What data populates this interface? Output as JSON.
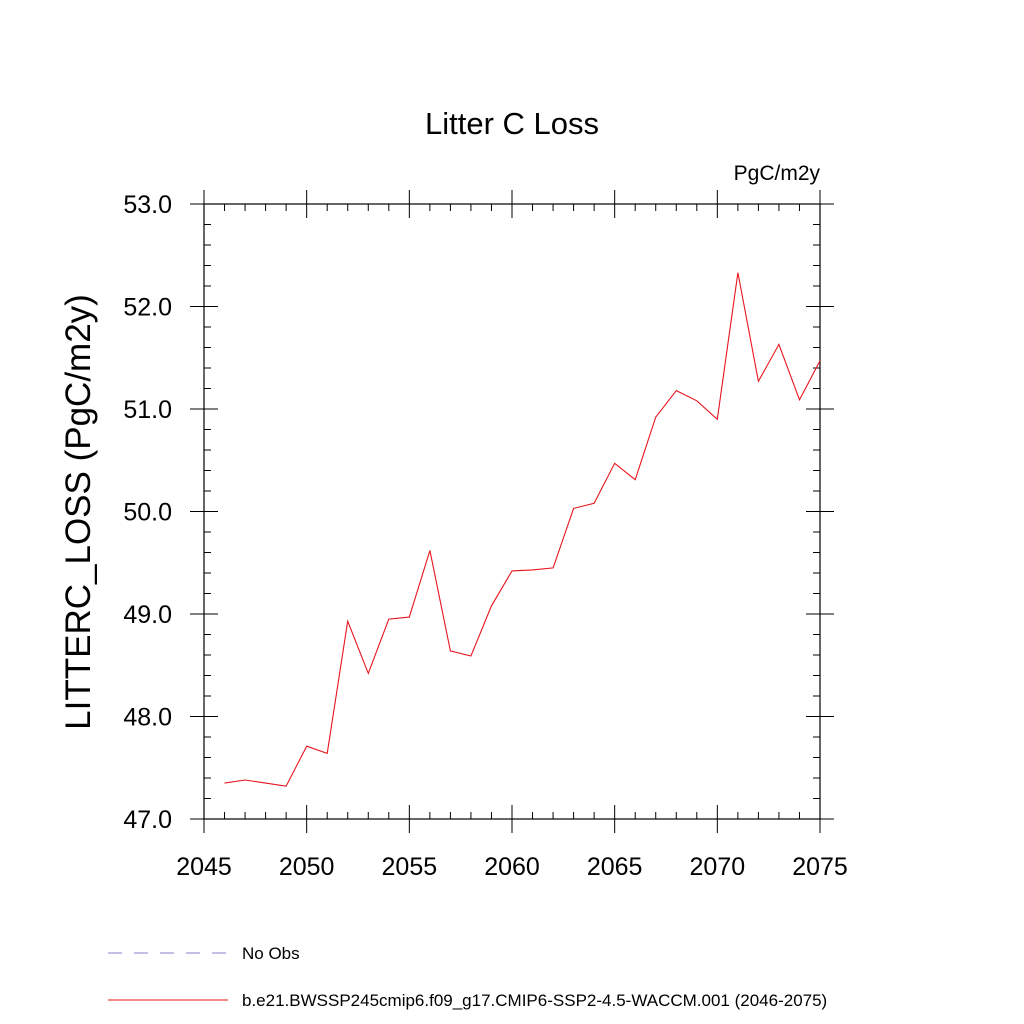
{
  "chart_data": {
    "type": "line",
    "title": "Litter C Loss",
    "units_label": "PgC/m2y",
    "ylabel": "LITTERC_LOSS  (PgC/m2y)",
    "xlabel": "",
    "xlim": [
      2045,
      2075
    ],
    "ylim": [
      47.0,
      53.0
    ],
    "x_ticks": [
      2045,
      2050,
      2055,
      2060,
      2065,
      2070,
      2075
    ],
    "x_tick_labels": [
      "2045",
      "2050",
      "2055",
      "2060",
      "2065",
      "2070",
      "2075"
    ],
    "y_ticks": [
      47.0,
      48.0,
      49.0,
      50.0,
      51.0,
      52.0,
      53.0
    ],
    "y_tick_labels": [
      "47.0",
      "48.0",
      "49.0",
      "50.0",
      "51.0",
      "52.0",
      "53.0"
    ],
    "grid": false,
    "legend_position": "bottom",
    "series": [
      {
        "name": "No Obs",
        "color": "#8a7fc8",
        "dash": true,
        "x": [],
        "y": []
      },
      {
        "name": "b.e21.BWSSP245cmip6.f09_g17.CMIP6-SSP2-4.5-WACCM.001 (2046-2075)",
        "color": "#e8141c",
        "dash": false,
        "x": [
          2046,
          2047,
          2048,
          2049,
          2050,
          2051,
          2052,
          2053,
          2054,
          2055,
          2056,
          2057,
          2058,
          2059,
          2060,
          2061,
          2062,
          2063,
          2064,
          2065,
          2066,
          2067,
          2068,
          2069,
          2070,
          2071,
          2072,
          2073,
          2074,
          2075
        ],
        "y": [
          47.35,
          47.38,
          47.35,
          47.32,
          47.71,
          47.64,
          48.93,
          48.42,
          48.95,
          48.97,
          49.62,
          48.64,
          48.59,
          49.08,
          49.42,
          49.43,
          49.45,
          50.03,
          50.08,
          50.47,
          50.31,
          50.92,
          51.18,
          51.08,
          50.9,
          52.33,
          51.27,
          51.63,
          51.09,
          51.47
        ]
      }
    ]
  }
}
